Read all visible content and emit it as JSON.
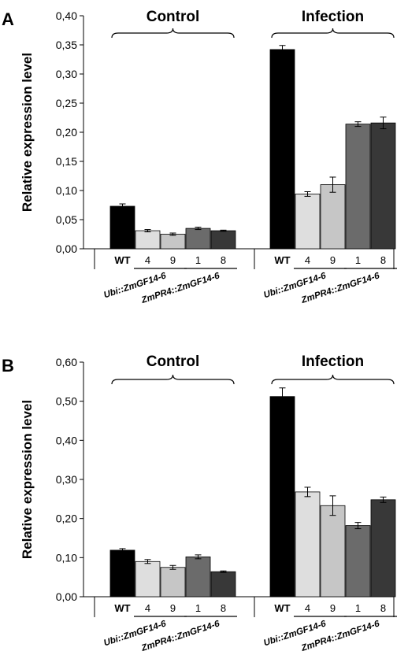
{
  "chart_data": [
    {
      "type": "bar",
      "panel_label": "A",
      "ylabel": "Relative expression level",
      "ylim": [
        0,
        0.4
      ],
      "yticks": [
        "0,00",
        "0,05",
        "0,10",
        "0,15",
        "0,20",
        "0,25",
        "0,30",
        "0,35",
        "0,40"
      ],
      "yticks_values": [
        0,
        0.05,
        0.1,
        0.15,
        0.2,
        0.25,
        0.3,
        0.35,
        0.4
      ],
      "groups": [
        {
          "title": "Control",
          "categories": [
            "WT",
            "4",
            "9",
            "1",
            "8"
          ],
          "values": [
            0.073,
            0.031,
            0.025,
            0.035,
            0.031
          ],
          "errors": [
            0.004,
            0.002,
            0.002,
            0.002,
            0.001
          ]
        },
        {
          "title": "Infection",
          "categories": [
            "WT",
            "4",
            "9",
            "1",
            "8"
          ],
          "values": [
            0.342,
            0.094,
            0.11,
            0.214,
            0.216
          ],
          "errors": [
            0.007,
            0.004,
            0.013,
            0.004,
            0.01
          ]
        }
      ],
      "line_labels": [
        "Ubi::ZmGF14-6",
        "ZmPR4::ZmGF14-6"
      ]
    },
    {
      "type": "bar",
      "panel_label": "B",
      "ylabel": "Relative expression level",
      "ylim": [
        0,
        0.6
      ],
      "yticks": [
        "0,00",
        "0,10",
        "0,20",
        "0,30",
        "0,40",
        "0,50",
        "0,60"
      ],
      "yticks_values": [
        0,
        0.1,
        0.2,
        0.3,
        0.4,
        0.5,
        0.6
      ],
      "groups": [
        {
          "title": "Control",
          "categories": [
            "WT",
            "4",
            "9",
            "1",
            "8"
          ],
          "values": [
            0.119,
            0.09,
            0.075,
            0.102,
            0.064
          ],
          "errors": [
            0.004,
            0.005,
            0.005,
            0.005,
            0.002
          ]
        },
        {
          "title": "Infection",
          "categories": [
            "WT",
            "4",
            "9",
            "1",
            "8"
          ],
          "values": [
            0.512,
            0.268,
            0.233,
            0.182,
            0.248
          ],
          "errors": [
            0.022,
            0.012,
            0.025,
            0.008,
            0.007
          ]
        }
      ],
      "line_labels": [
        "Ubi::ZmGF14-6",
        "ZmPR4::ZmGF14-6"
      ]
    }
  ],
  "colors": {
    "bars": [
      "#000000",
      "#dedede",
      "#c6c6c6",
      "#6b6b6b",
      "#383838"
    ],
    "axis": "#000000"
  }
}
